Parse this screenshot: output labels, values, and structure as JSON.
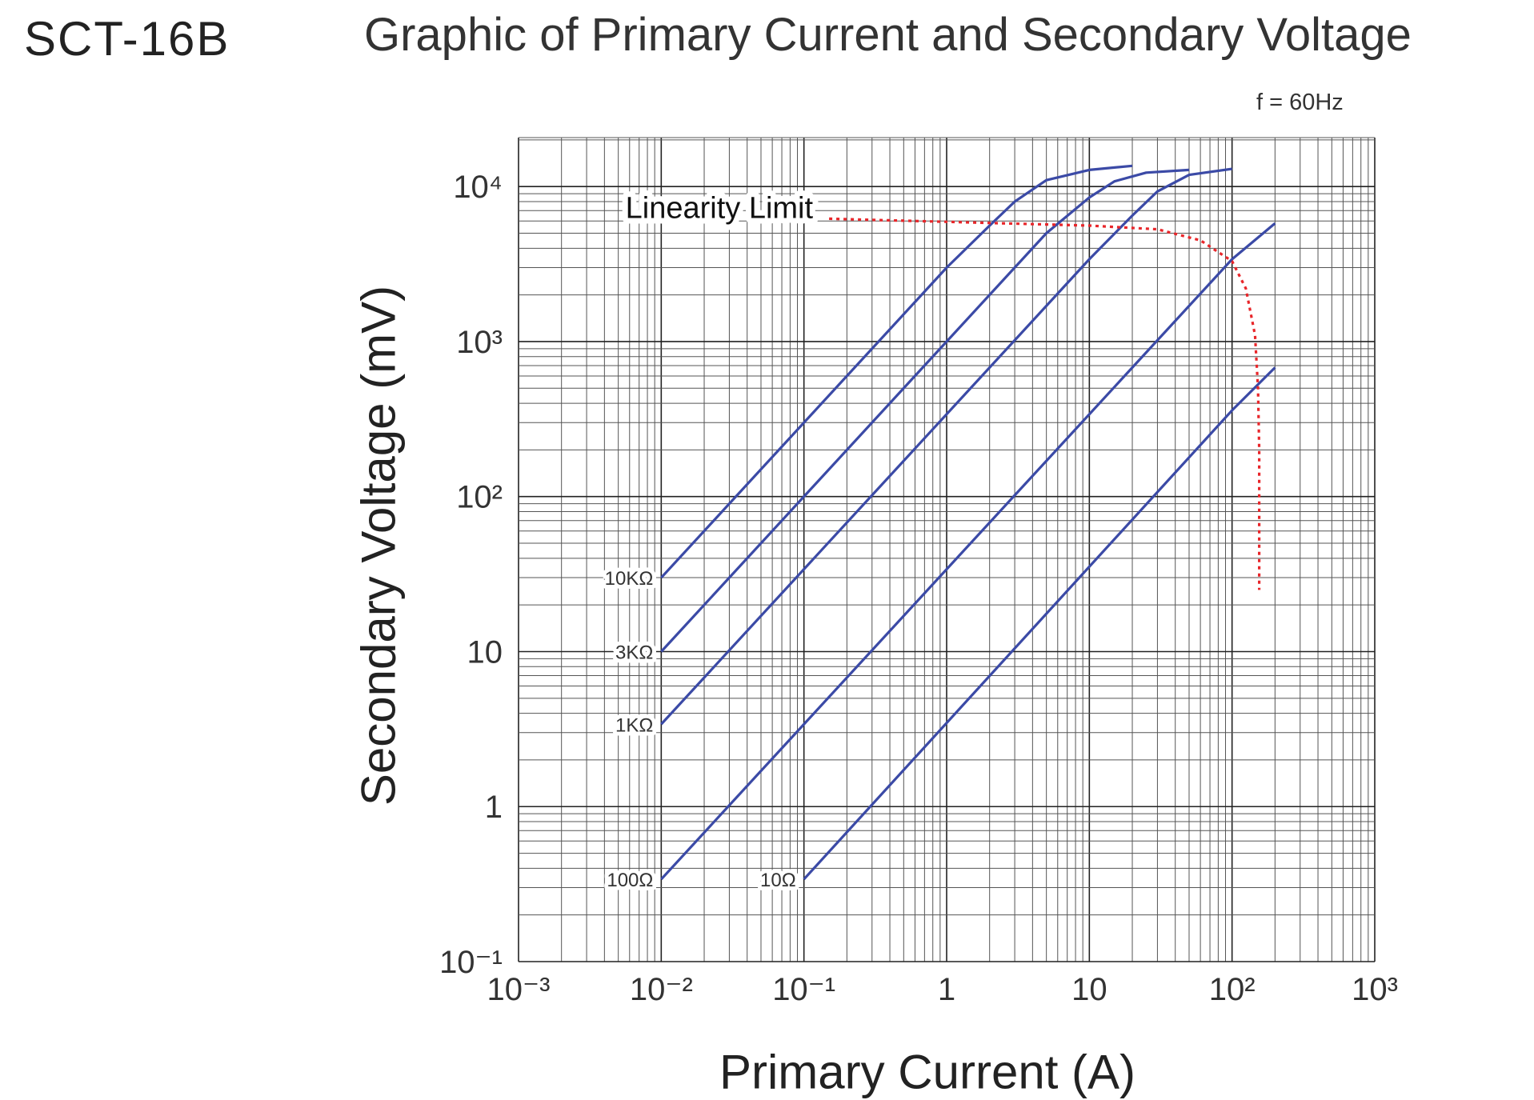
{
  "header": {
    "model": "SCT-16B",
    "title": "Graphic of Primary Current and Secondary Voltage",
    "frequency_note": "f = 60Hz"
  },
  "chart_data": {
    "type": "line",
    "title": "Graphic of Primary Current and Secondary Voltage",
    "xlabel": "Primary Current (A)",
    "ylabel": "Secondary Voltage (mV)",
    "x_scale": "log",
    "y_scale": "log",
    "xlim": [
      0.001,
      1000
    ],
    "ylim": [
      0.1,
      20700
    ],
    "grid": true,
    "x_ticks": [
      {
        "value": 0.001,
        "label": "10⁻³"
      },
      {
        "value": 0.01,
        "label": "10⁻²"
      },
      {
        "value": 0.1,
        "label": "10⁻¹"
      },
      {
        "value": 1,
        "label": "1"
      },
      {
        "value": 10,
        "label": "10"
      },
      {
        "value": 100,
        "label": "10²"
      },
      {
        "value": 1000,
        "label": "10³"
      }
    ],
    "y_ticks": [
      {
        "value": 0.1,
        "label": "10⁻¹"
      },
      {
        "value": 1,
        "label": "1"
      },
      {
        "value": 10,
        "label": "10"
      },
      {
        "value": 100,
        "label": "10²"
      },
      {
        "value": 1000,
        "label": "10³"
      },
      {
        "value": 10000,
        "label": "10⁴"
      }
    ],
    "series": [
      {
        "name": "10KΩ",
        "color": "#3b4aa6",
        "points": [
          [
            0.01,
            30
          ],
          [
            1,
            3000
          ],
          [
            2,
            5600
          ],
          [
            3,
            8000
          ],
          [
            5,
            11000
          ],
          [
            10,
            12800
          ],
          [
            20,
            13600
          ]
        ]
      },
      {
        "name": "3KΩ",
        "color": "#3b4aa6",
        "points": [
          [
            0.01,
            10
          ],
          [
            5,
            5000
          ],
          [
            10,
            8500
          ],
          [
            15,
            10800
          ],
          [
            25,
            12300
          ],
          [
            50,
            12800
          ]
        ]
      },
      {
        "name": "1KΩ",
        "color": "#3b4aa6",
        "points": [
          [
            0.01,
            3.4
          ],
          [
            10,
            3400
          ],
          [
            20,
            6500
          ],
          [
            30,
            9300
          ],
          [
            50,
            11900
          ],
          [
            100,
            13000
          ]
        ]
      },
      {
        "name": "100Ω",
        "color": "#3b4aa6",
        "points": [
          [
            0.01,
            0.34
          ],
          [
            100,
            3400
          ],
          [
            200,
            5800
          ]
        ]
      },
      {
        "name": "10Ω",
        "color": "#3b4aa6",
        "points": [
          [
            0.1,
            0.34
          ],
          [
            100,
            360
          ],
          [
            200,
            680
          ]
        ]
      }
    ],
    "linearity_limit": {
      "label": "Linearity Limit",
      "color": "#e8262a",
      "style": "dotted",
      "points": [
        [
          0.15,
          6200
        ],
        [
          10,
          5600
        ],
        [
          30,
          5300
        ],
        [
          60,
          4500
        ],
        [
          100,
          3300
        ],
        [
          125,
          2200
        ],
        [
          145,
          1100
        ],
        [
          152,
          500
        ],
        [
          155,
          200
        ],
        [
          155,
          25
        ]
      ]
    }
  }
}
